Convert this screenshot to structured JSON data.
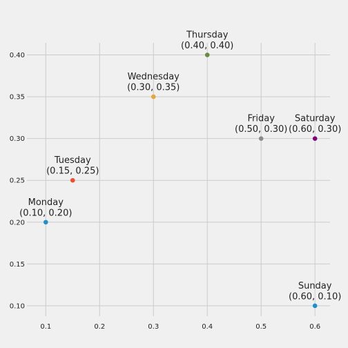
{
  "chart_data": {
    "type": "scatter",
    "title": "",
    "xlabel": "",
    "ylabel": "",
    "xlim": [
      0.065,
      0.628
    ],
    "ylim": [
      0.0875,
      0.4145
    ],
    "grid": true,
    "background_color": "#f0f0f0",
    "grid_color": "#cbcbcb",
    "x_ticks": [
      "0.1",
      "0.2",
      "0.3",
      "0.4",
      "0.5",
      "0.6"
    ],
    "y_ticks": [
      "0.10",
      "0.15",
      "0.20",
      "0.25",
      "0.30",
      "0.35",
      "0.40"
    ],
    "points": [
      {
        "name": "Monday",
        "coord_label": "(0.10, 0.20)",
        "x": 0.1,
        "y": 0.2,
        "color": "#1f8fce"
      },
      {
        "name": "Tuesday",
        "coord_label": "(0.15, 0.25)",
        "x": 0.15,
        "y": 0.25,
        "color": "#ee4e2d"
      },
      {
        "name": "Wednesday",
        "coord_label": "(0.30, 0.35)",
        "x": 0.3,
        "y": 0.35,
        "color": "#e3a838"
      },
      {
        "name": "Thursday",
        "coord_label": "(0.40, 0.40)",
        "x": 0.4,
        "y": 0.4,
        "color": "#6a8a3f"
      },
      {
        "name": "Friday",
        "coord_label": "(0.50, 0.30)",
        "x": 0.5,
        "y": 0.3,
        "color": "#8b8b8b"
      },
      {
        "name": "Saturday",
        "coord_label": "(0.60, 0.30)",
        "x": 0.6,
        "y": 0.3,
        "color": "#800080"
      },
      {
        "name": "Sunday",
        "coord_label": "(0.60, 0.10)",
        "x": 0.6,
        "y": 0.1,
        "color": "#1f8fce"
      }
    ]
  }
}
